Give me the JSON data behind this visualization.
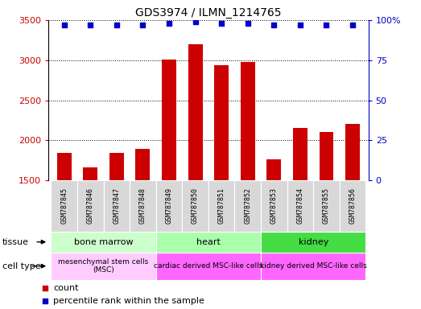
{
  "title": "GDS3974 / ILMN_1214765",
  "samples": [
    "GSM787845",
    "GSM787846",
    "GSM787847",
    "GSM787848",
    "GSM787849",
    "GSM787850",
    "GSM787851",
    "GSM787852",
    "GSM787853",
    "GSM787854",
    "GSM787855",
    "GSM787856"
  ],
  "counts": [
    1840,
    1665,
    1840,
    1895,
    3005,
    3195,
    2940,
    2975,
    1765,
    2155,
    2100,
    2205
  ],
  "percentile_ranks": [
    97,
    97,
    97,
    97,
    98,
    99,
    98,
    98,
    97,
    97,
    97,
    97
  ],
  "ymin": 1500,
  "ymax": 3500,
  "yticks": [
    1500,
    2000,
    2500,
    3000,
    3500
  ],
  "y2min": 0,
  "y2max": 100,
  "y2ticks": [
    0,
    25,
    50,
    75,
    100
  ],
  "bar_color": "#cc0000",
  "dot_color": "#0000cc",
  "tissue_configs": [
    {
      "label": "bone marrow",
      "start": 0,
      "end": 3,
      "color": "#ccffcc"
    },
    {
      "label": "heart",
      "start": 4,
      "end": 7,
      "color": "#aaffaa"
    },
    {
      "label": "kidney",
      "start": 8,
      "end": 11,
      "color": "#44dd44"
    }
  ],
  "cell_configs": [
    {
      "label": "mesenchymal stem cells\n(MSC)",
      "start": 0,
      "end": 3,
      "color": "#ffccff"
    },
    {
      "label": "cardiac derived MSC-like cells",
      "start": 4,
      "end": 7,
      "color": "#ff66ff"
    },
    {
      "label": "kidney derived MSC-like cells",
      "start": 8,
      "end": 11,
      "color": "#ff66ff"
    }
  ],
  "legend_count_label": "count",
  "legend_percentile_label": "percentile rank within the sample"
}
